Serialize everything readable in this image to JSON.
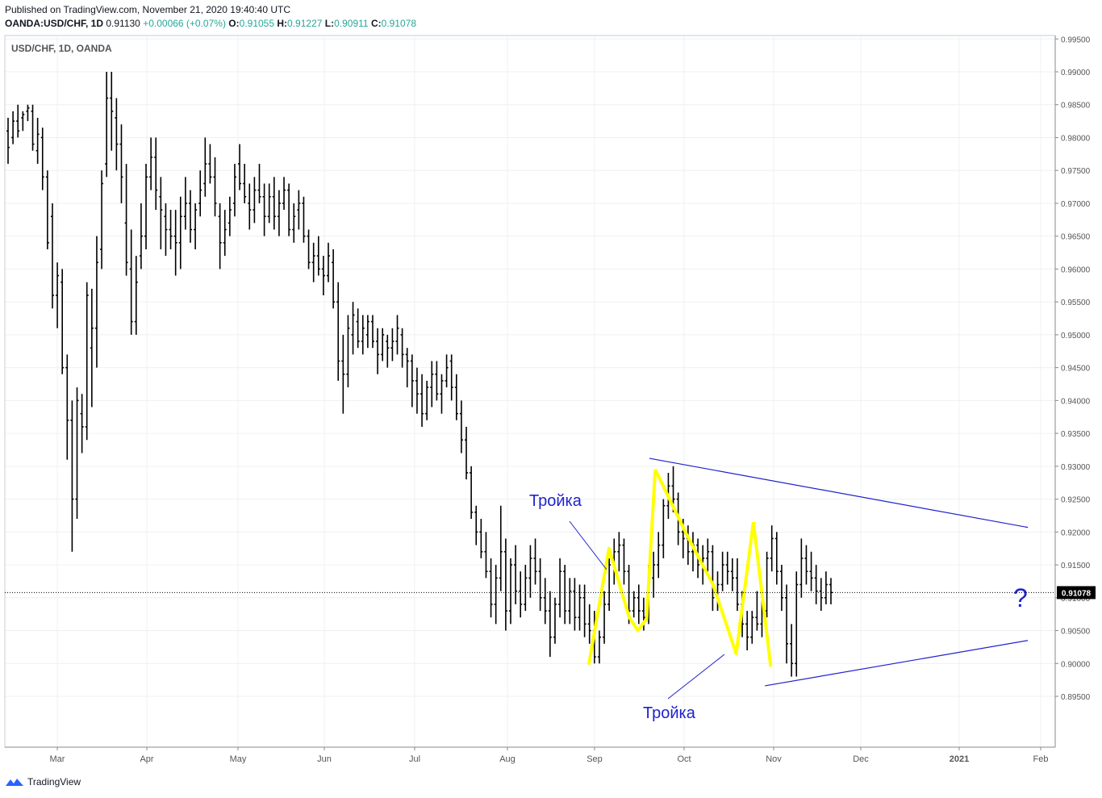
{
  "header": {
    "published": "Published on TradingView.com, November 21, 2020 19:40:40 UTC",
    "symbol": "OANDA:USD/CHF, 1D",
    "last": "0.91130",
    "change": "+0.00066 (+0.07%)",
    "o_label": "O:",
    "o": "0.91055",
    "h_label": "H:",
    "h": "0.91227",
    "l_label": "L:",
    "l": "0.90911",
    "c_label": "C:",
    "c": "0.91078"
  },
  "footer": {
    "brand": "TradingView"
  },
  "colors": {
    "bars": "#000000",
    "highlight": "#ffff00",
    "trendline": "#1e22cc",
    "annotation": "#1e22cc",
    "grid": "#eef0f3",
    "change": "#26a69a"
  },
  "chart_data": {
    "type": "ohlc",
    "title": "USD/CHF, 1D, OANDA",
    "ylim": [
      0.8925,
      0.9955
    ],
    "y_ticks": [
      "0.99500",
      "0.99000",
      "0.98500",
      "0.98000",
      "0.97500",
      "0.97000",
      "0.96500",
      "0.96000",
      "0.95500",
      "0.95000",
      "0.94500",
      "0.94000",
      "0.93500",
      "0.93000",
      "0.92500",
      "0.92000",
      "0.91500",
      "0.91000",
      "0.90500",
      "0.90000",
      "0.89500"
    ],
    "x_ticks": [
      "Mar",
      "Apr",
      "May",
      "Jun",
      "Jul",
      "Aug",
      "Sep",
      "Oct",
      "Nov",
      "Dec",
      "2021",
      "Feb"
    ],
    "last_price": "0.91078",
    "grid": true,
    "annotations": [
      {
        "text": "Тройка"
      },
      {
        "text": "Тройка"
      },
      {
        "text": "?"
      }
    ],
    "trendlines": [
      {
        "name": "upper",
        "from": [
          "2020-09-22",
          0.9312
        ],
        "to": [
          "2021-01-31",
          0.9207
        ]
      },
      {
        "name": "lower",
        "from": [
          "2020-11-01",
          0.8966
        ],
        "to": [
          "2021-01-31",
          0.9035
        ]
      }
    ],
    "highlight_paths": [
      [
        [
          "2020-09-01",
          0.8998
        ],
        [
          "2020-09-08",
          0.9175
        ],
        [
          "2020-09-15",
          0.907
        ],
        [
          "2020-09-18",
          0.905
        ],
        [
          "2020-09-21",
          0.9068
        ],
        [
          "2020-09-24",
          0.9295
        ]
      ],
      [
        [
          "2020-09-24",
          0.9295
        ],
        [
          "2020-10-05",
          0.9195
        ],
        [
          "2020-10-14",
          0.912
        ],
        [
          "2020-10-22",
          0.9015
        ],
        [
          "2020-10-28",
          0.9215
        ]
      ],
      [
        [
          "2020-10-28",
          0.9215
        ],
        [
          "2020-11-03",
          0.8995
        ]
      ]
    ],
    "bars": [
      [
        0.981,
        0.983,
        0.976,
        0.9785
      ],
      [
        0.98,
        0.984,
        0.979,
        0.9825
      ],
      [
        0.9825,
        0.985,
        0.98,
        0.981
      ],
      [
        0.983,
        0.984,
        0.981,
        0.9835
      ],
      [
        0.984,
        0.985,
        0.9825,
        0.9845
      ],
      [
        0.984,
        0.985,
        0.978,
        0.979
      ],
      [
        0.978,
        0.983,
        0.976,
        0.9805
      ],
      [
        0.98,
        0.9815,
        0.972,
        0.974
      ],
      [
        0.974,
        0.975,
        0.963,
        0.964
      ],
      [
        0.968,
        0.97,
        0.954,
        0.956
      ],
      [
        0.956,
        0.961,
        0.951,
        0.959
      ],
      [
        0.958,
        0.96,
        0.944,
        0.945
      ],
      [
        0.945,
        0.947,
        0.931,
        0.937
      ],
      [
        0.937,
        0.94,
        0.917,
        0.925
      ],
      [
        0.925,
        0.942,
        0.922,
        0.94
      ],
      [
        0.938,
        0.941,
        0.932,
        0.936
      ],
      [
        0.936,
        0.958,
        0.934,
        0.956
      ],
      [
        0.948,
        0.957,
        0.939,
        0.951
      ],
      [
        0.951,
        0.965,
        0.945,
        0.961
      ],
      [
        0.963,
        0.975,
        0.96,
        0.973
      ],
      [
        0.976,
        0.99,
        0.974,
        0.986
      ],
      [
        0.986,
        0.99,
        0.978,
        0.984
      ],
      [
        0.983,
        0.986,
        0.975,
        0.979
      ],
      [
        0.979,
        0.982,
        0.97,
        0.974
      ],
      [
        0.967,
        0.976,
        0.959,
        0.961
      ],
      [
        0.96,
        0.966,
        0.95,
        0.952
      ],
      [
        0.952,
        0.962,
        0.95,
        0.958
      ],
      [
        0.962,
        0.97,
        0.96,
        0.965
      ],
      [
        0.965,
        0.976,
        0.963,
        0.974
      ],
      [
        0.974,
        0.98,
        0.972,
        0.977
      ],
      [
        0.977,
        0.98,
        0.969,
        0.972
      ],
      [
        0.971,
        0.974,
        0.963,
        0.969
      ],
      [
        0.968,
        0.97,
        0.962,
        0.966
      ],
      [
        0.966,
        0.969,
        0.963,
        0.965
      ],
      [
        0.965,
        0.969,
        0.959,
        0.964
      ],
      [
        0.964,
        0.971,
        0.96,
        0.968
      ],
      [
        0.968,
        0.974,
        0.966,
        0.97
      ],
      [
        0.97,
        0.972,
        0.964,
        0.966
      ],
      [
        0.966,
        0.97,
        0.963,
        0.969
      ],
      [
        0.97,
        0.975,
        0.968,
        0.972
      ],
      [
        0.973,
        0.98,
        0.971,
        0.976
      ],
      [
        0.976,
        0.979,
        0.973,
        0.974
      ],
      [
        0.974,
        0.977,
        0.968,
        0.97
      ],
      [
        0.968,
        0.97,
        0.96,
        0.964
      ],
      [
        0.964,
        0.969,
        0.962,
        0.966
      ],
      [
        0.967,
        0.971,
        0.965,
        0.969
      ],
      [
        0.97,
        0.976,
        0.968,
        0.974
      ],
      [
        0.976,
        0.979,
        0.972,
        0.973
      ],
      [
        0.973,
        0.976,
        0.97,
        0.971
      ],
      [
        0.97,
        0.973,
        0.966,
        0.969
      ],
      [
        0.969,
        0.974,
        0.967,
        0.972
      ],
      [
        0.972,
        0.976,
        0.97,
        0.971
      ],
      [
        0.971,
        0.973,
        0.965,
        0.968
      ],
      [
        0.968,
        0.973,
        0.967,
        0.971
      ],
      [
        0.971,
        0.974,
        0.966,
        0.968
      ],
      [
        0.968,
        0.972,
        0.965,
        0.97
      ],
      [
        0.97,
        0.974,
        0.969,
        0.972
      ],
      [
        0.972,
        0.973,
        0.965,
        0.966
      ],
      [
        0.966,
        0.97,
        0.964,
        0.968
      ],
      [
        0.969,
        0.972,
        0.966,
        0.97
      ],
      [
        0.97,
        0.971,
        0.964,
        0.965
      ],
      [
        0.965,
        0.966,
        0.96,
        0.961
      ],
      [
        0.961,
        0.964,
        0.958,
        0.962
      ],
      [
        0.962,
        0.965,
        0.959,
        0.96
      ],
      [
        0.96,
        0.962,
        0.956,
        0.959
      ],
      [
        0.959,
        0.964,
        0.958,
        0.962
      ],
      [
        0.961,
        0.963,
        0.954,
        0.955
      ],
      [
        0.955,
        0.958,
        0.943,
        0.946
      ],
      [
        0.946,
        0.95,
        0.938,
        0.944
      ],
      [
        0.944,
        0.953,
        0.942,
        0.951
      ],
      [
        0.95,
        0.955,
        0.947,
        0.953
      ],
      [
        0.952,
        0.954,
        0.948,
        0.949
      ],
      [
        0.949,
        0.953,
        0.947,
        0.951
      ],
      [
        0.95,
        0.953,
        0.948,
        0.952
      ],
      [
        0.952,
        0.953,
        0.948,
        0.949
      ],
      [
        0.949,
        0.951,
        0.944,
        0.947
      ],
      [
        0.947,
        0.951,
        0.946,
        0.95
      ],
      [
        0.949,
        0.95,
        0.945,
        0.948
      ],
      [
        0.948,
        0.951,
        0.946,
        0.949
      ],
      [
        0.949,
        0.953,
        0.947,
        0.951
      ],
      [
        0.95,
        0.951,
        0.945,
        0.947
      ],
      [
        0.947,
        0.948,
        0.942,
        0.946
      ],
      [
        0.946,
        0.947,
        0.939,
        0.943
      ],
      [
        0.943,
        0.945,
        0.938,
        0.941
      ],
      [
        0.941,
        0.944,
        0.936,
        0.938
      ],
      [
        0.938,
        0.943,
        0.937,
        0.942
      ],
      [
        0.942,
        0.946,
        0.939,
        0.944
      ],
      [
        0.944,
        0.946,
        0.94,
        0.941
      ],
      [
        0.941,
        0.944,
        0.938,
        0.943
      ],
      [
        0.943,
        0.947,
        0.942,
        0.945
      ],
      [
        0.946,
        0.947,
        0.94,
        0.942
      ],
      [
        0.942,
        0.944,
        0.937,
        0.938
      ],
      [
        0.938,
        0.94,
        0.932,
        0.934
      ],
      [
        0.934,
        0.936,
        0.928,
        0.929
      ],
      [
        0.929,
        0.93,
        0.922,
        0.923
      ],
      [
        0.923,
        0.924,
        0.918,
        0.92
      ],
      [
        0.92,
        0.922,
        0.916,
        0.917
      ],
      [
        0.917,
        0.92,
        0.913,
        0.914
      ],
      [
        0.914,
        0.916,
        0.907,
        0.909
      ],
      [
        0.909,
        0.915,
        0.906,
        0.913
      ],
      [
        0.913,
        0.924,
        0.911,
        0.917
      ],
      [
        0.917,
        0.919,
        0.905,
        0.908
      ],
      [
        0.908,
        0.916,
        0.906,
        0.915
      ],
      [
        0.915,
        0.918,
        0.909,
        0.911
      ],
      [
        0.911,
        0.914,
        0.907,
        0.909
      ],
      [
        0.909,
        0.915,
        0.908,
        0.913
      ],
      [
        0.913,
        0.918,
        0.91,
        0.916
      ],
      [
        0.916,
        0.919,
        0.912,
        0.914
      ],
      [
        0.914,
        0.916,
        0.908,
        0.91
      ],
      [
        0.91,
        0.913,
        0.906,
        0.908
      ],
      [
        0.908,
        0.911,
        0.901,
        0.904
      ],
      [
        0.904,
        0.91,
        0.903,
        0.909
      ],
      [
        0.909,
        0.916,
        0.907,
        0.914
      ],
      [
        0.914,
        0.915,
        0.906,
        0.908
      ],
      [
        0.908,
        0.913,
        0.906,
        0.911
      ],
      [
        0.911,
        0.913,
        0.905,
        0.907
      ],
      [
        0.907,
        0.912,
        0.905,
        0.91
      ],
      [
        0.91,
        0.912,
        0.904,
        0.906
      ],
      [
        0.906,
        0.909,
        0.903,
        0.905
      ],
      [
        0.905,
        0.908,
        0.9,
        0.901
      ],
      [
        0.901,
        0.905,
        0.9,
        0.904
      ],
      [
        0.904,
        0.911,
        0.903,
        0.909
      ],
      [
        0.909,
        0.916,
        0.908,
        0.915
      ],
      [
        0.915,
        0.919,
        0.912,
        0.917
      ],
      [
        0.917,
        0.92,
        0.914,
        0.918
      ],
      [
        0.918,
        0.919,
        0.912,
        0.914
      ],
      [
        0.914,
        0.915,
        0.906,
        0.908
      ],
      [
        0.908,
        0.911,
        0.907,
        0.91
      ],
      [
        0.91,
        0.912,
        0.906,
        0.908
      ],
      [
        0.908,
        0.91,
        0.905,
        0.907
      ],
      [
        0.907,
        0.915,
        0.906,
        0.913
      ],
      [
        0.913,
        0.917,
        0.91,
        0.915
      ],
      [
        0.915,
        0.92,
        0.913,
        0.918
      ],
      [
        0.918,
        0.925,
        0.916,
        0.924
      ],
      [
        0.924,
        0.929,
        0.922,
        0.927
      ],
      [
        0.927,
        0.93,
        0.923,
        0.925
      ],
      [
        0.925,
        0.926,
        0.918,
        0.92
      ],
      [
        0.92,
        0.922,
        0.916,
        0.919
      ],
      [
        0.919,
        0.921,
        0.915,
        0.917
      ],
      [
        0.917,
        0.92,
        0.914,
        0.918
      ],
      [
        0.918,
        0.919,
        0.913,
        0.915
      ],
      [
        0.915,
        0.918,
        0.912,
        0.916
      ],
      [
        0.916,
        0.919,
        0.914,
        0.917
      ],
      [
        0.917,
        0.918,
        0.908,
        0.91
      ],
      [
        0.91,
        0.914,
        0.908,
        0.912
      ],
      [
        0.912,
        0.917,
        0.911,
        0.915
      ],
      [
        0.915,
        0.917,
        0.912,
        0.914
      ],
      [
        0.914,
        0.916,
        0.911,
        0.913
      ],
      [
        0.913,
        0.916,
        0.908,
        0.909
      ],
      [
        0.909,
        0.911,
        0.904,
        0.906
      ],
      [
        0.906,
        0.908,
        0.902,
        0.904
      ],
      [
        0.904,
        0.908,
        0.903,
        0.907
      ],
      [
        0.907,
        0.911,
        0.905,
        0.906
      ],
      [
        0.906,
        0.91,
        0.904,
        0.908
      ],
      [
        0.908,
        0.917,
        0.907,
        0.916
      ],
      [
        0.916,
        0.921,
        0.914,
        0.919
      ],
      [
        0.919,
        0.92,
        0.912,
        0.914
      ],
      [
        0.914,
        0.915,
        0.908,
        0.91
      ],
      [
        0.91,
        0.912,
        0.9,
        0.903
      ],
      [
        0.903,
        0.906,
        0.898,
        0.9
      ],
      [
        0.9,
        0.914,
        0.898,
        0.912
      ],
      [
        0.912,
        0.919,
        0.91,
        0.916
      ],
      [
        0.916,
        0.918,
        0.912,
        0.914
      ],
      [
        0.914,
        0.917,
        0.911,
        0.913
      ],
      [
        0.913,
        0.915,
        0.909,
        0.911
      ],
      [
        0.911,
        0.913,
        0.908,
        0.91
      ],
      [
        0.91,
        0.914,
        0.909,
        0.912
      ],
      [
        0.912,
        0.913,
        0.909,
        0.9108
      ]
    ]
  }
}
